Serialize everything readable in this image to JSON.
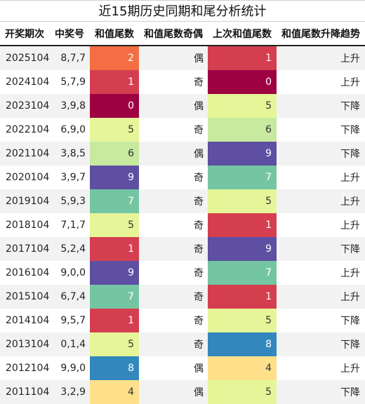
{
  "title": "近15期历史同期和尾分析统计",
  "headers": {
    "issue": "开奖期次",
    "numbers": "中奖号",
    "sum_tail": "和值尾数",
    "parity": "和值尾数奇偶",
    "prev_sum_tail": "上次和值尾数",
    "trend": "和值尾数升降趋势"
  },
  "tail_colors": {
    "0": "#9e0142",
    "1": "#d53e4f",
    "2": "#f46d43",
    "4": "#fee08b",
    "5": "#e6f598",
    "6": "#c7e9a0",
    "7": "#74c6a3",
    "8": "#3288bd",
    "9": "#5e4fa2"
  },
  "rows": [
    {
      "issue": "2025104",
      "numbers": "8,7,7",
      "sum_tail": "2",
      "parity": "偶",
      "prev_sum_tail": "1",
      "trend": "上升"
    },
    {
      "issue": "2024104",
      "numbers": "5,7,9",
      "sum_tail": "1",
      "parity": "奇",
      "prev_sum_tail": "0",
      "trend": "上升"
    },
    {
      "issue": "2023104",
      "numbers": "3,9,8",
      "sum_tail": "0",
      "parity": "偶",
      "prev_sum_tail": "5",
      "trend": "下降"
    },
    {
      "issue": "2022104",
      "numbers": "6,9,0",
      "sum_tail": "5",
      "parity": "奇",
      "prev_sum_tail": "6",
      "trend": "下降"
    },
    {
      "issue": "2021104",
      "numbers": "3,8,5",
      "sum_tail": "6",
      "parity": "偶",
      "prev_sum_tail": "9",
      "trend": "下降"
    },
    {
      "issue": "2020104",
      "numbers": "3,9,7",
      "sum_tail": "9",
      "parity": "奇",
      "prev_sum_tail": "7",
      "trend": "上升"
    },
    {
      "issue": "2019104",
      "numbers": "5,9,3",
      "sum_tail": "7",
      "parity": "奇",
      "prev_sum_tail": "5",
      "trend": "上升"
    },
    {
      "issue": "2018104",
      "numbers": "7,1,7",
      "sum_tail": "5",
      "parity": "奇",
      "prev_sum_tail": "1",
      "trend": "上升"
    },
    {
      "issue": "2017104",
      "numbers": "5,2,4",
      "sum_tail": "1",
      "parity": "奇",
      "prev_sum_tail": "9",
      "trend": "下降"
    },
    {
      "issue": "2016104",
      "numbers": "9,0,0",
      "sum_tail": "9",
      "parity": "奇",
      "prev_sum_tail": "7",
      "trend": "上升"
    },
    {
      "issue": "2015104",
      "numbers": "6,7,4",
      "sum_tail": "7",
      "parity": "奇",
      "prev_sum_tail": "1",
      "trend": "上升"
    },
    {
      "issue": "2014104",
      "numbers": "9,5,7",
      "sum_tail": "1",
      "parity": "奇",
      "prev_sum_tail": "5",
      "trend": "下降"
    },
    {
      "issue": "2013104",
      "numbers": "0,1,4",
      "sum_tail": "5",
      "parity": "奇",
      "prev_sum_tail": "8",
      "trend": "下降"
    },
    {
      "issue": "2012104",
      "numbers": "9,9,0",
      "sum_tail": "8",
      "parity": "偶",
      "prev_sum_tail": "4",
      "trend": "上升"
    },
    {
      "issue": "2011104",
      "numbers": "3,2,9",
      "sum_tail": "4",
      "parity": "偶",
      "prev_sum_tail": "5",
      "trend": "下降"
    }
  ]
}
